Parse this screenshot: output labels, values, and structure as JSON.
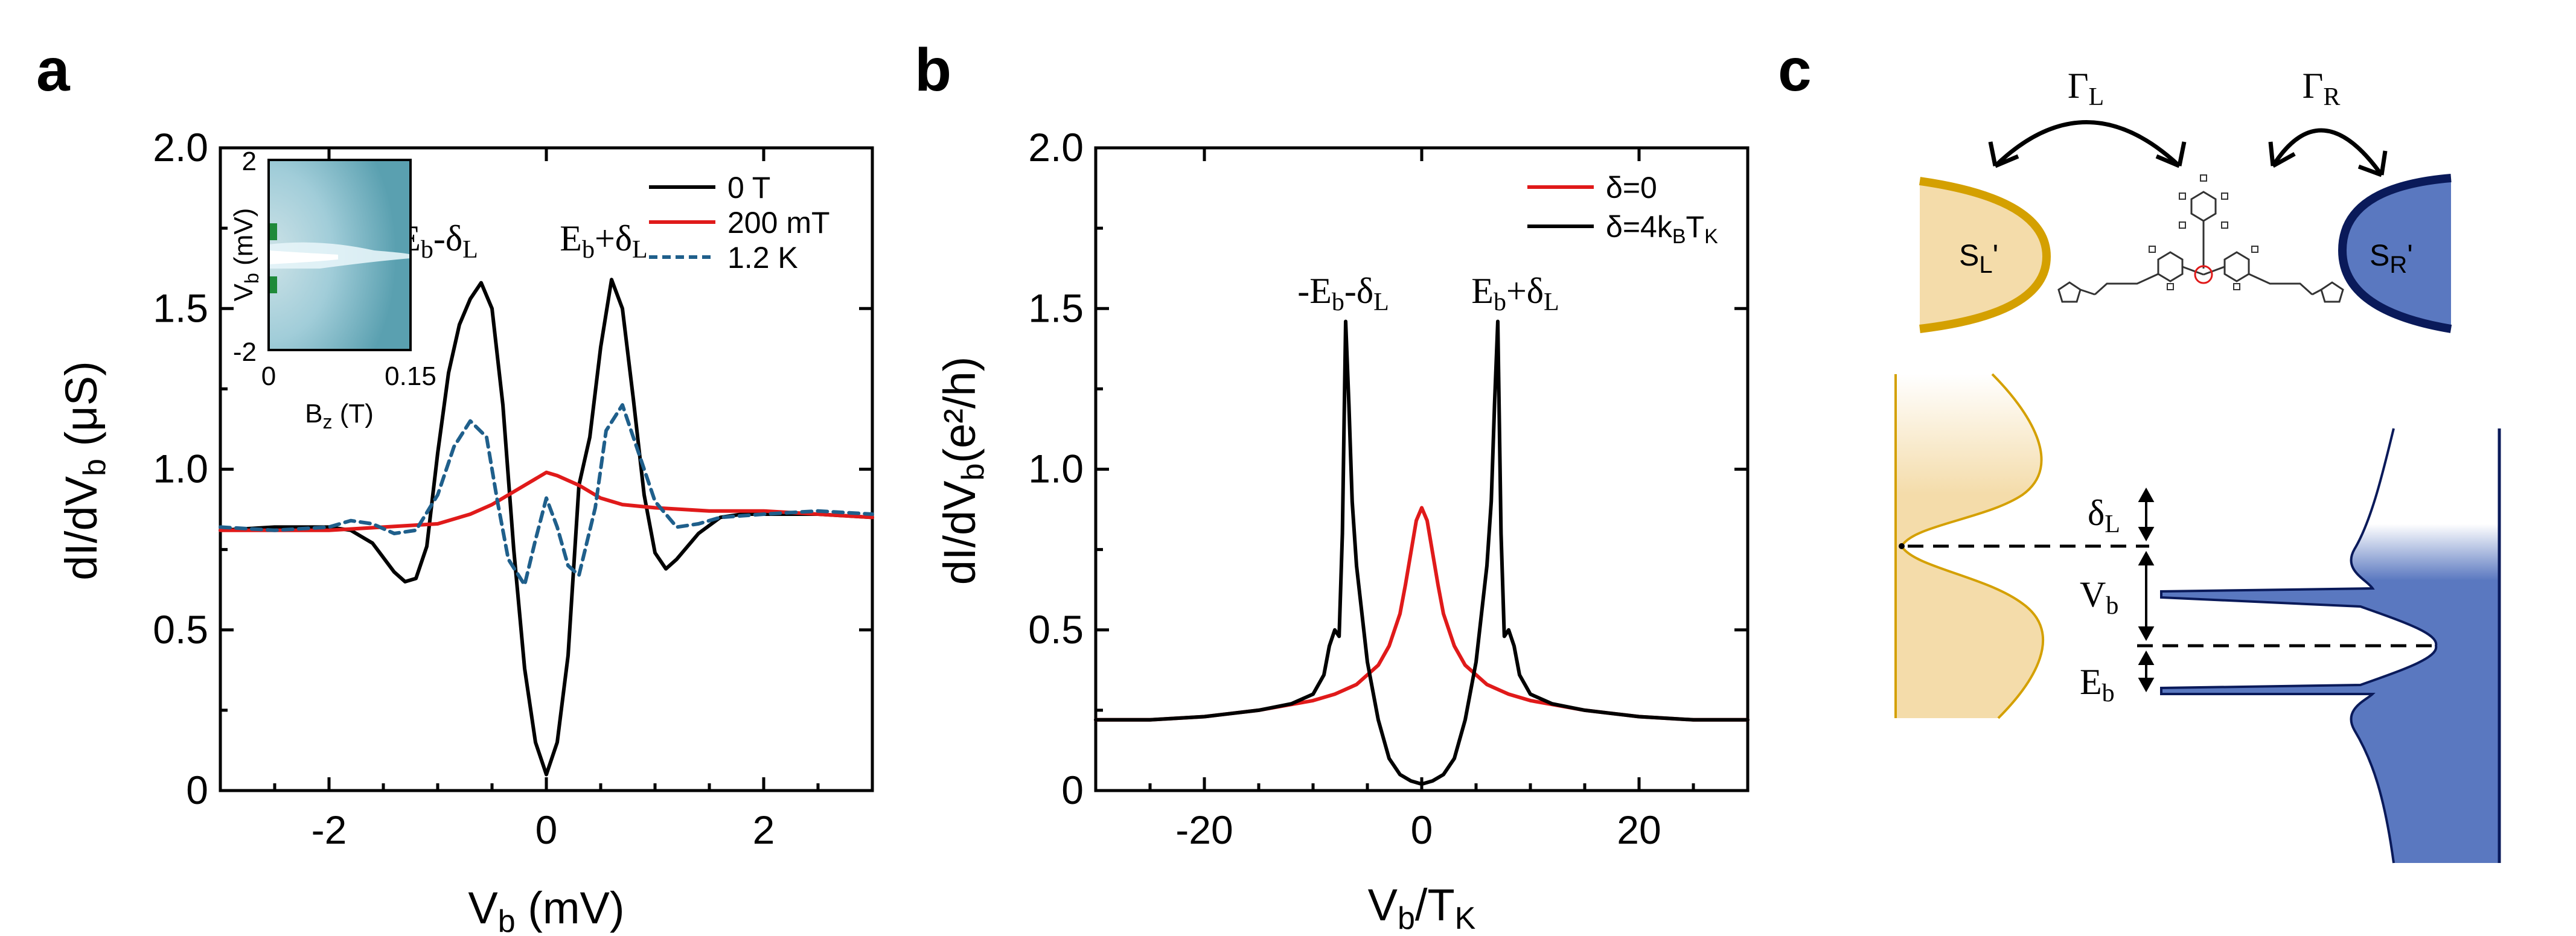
{
  "figure": {
    "panel_a": {
      "letter": "a"
    },
    "panel_b": {
      "letter": "b"
    },
    "panel_c": {
      "letter": "c"
    }
  },
  "chart_data": [
    {
      "type": "line",
      "panel": "a",
      "xlabel_main": "V",
      "xlabel_sub": "b",
      "xlabel_unit": " (mV)",
      "ylabel_main": "dI/dV",
      "ylabel_sub": "b",
      "ylabel_unit": " (μS)",
      "xlim": [
        -3,
        3
      ],
      "ylim": [
        0,
        2
      ],
      "xticks": [
        -2,
        0,
        2
      ],
      "xtick_labels": [
        "-2",
        "0",
        "2"
      ],
      "yticks": [
        0,
        0.5,
        1.0,
        1.5,
        2.0
      ],
      "ytick_labels": [
        "0",
        "0.5",
        "1.0",
        "1.5",
        "2.0"
      ],
      "legend_position": "top-right",
      "annotations": [
        {
          "main": "-E",
          "sub1": "b",
          "mid": "-δ",
          "sub2": "L"
        },
        {
          "main": "E",
          "sub1": "b",
          "mid": "+δ",
          "sub2": "L"
        }
      ],
      "series": [
        {
          "name": "0 T",
          "color": "#000000",
          "style": "solid",
          "x": [
            -3.0,
            -2.5,
            -2.0,
            -1.8,
            -1.6,
            -1.4,
            -1.3,
            -1.2,
            -1.1,
            -1.0,
            -0.9,
            -0.8,
            -0.7,
            -0.6,
            -0.5,
            -0.4,
            -0.3,
            -0.2,
            -0.1,
            0.0,
            0.1,
            0.2,
            0.3,
            0.4,
            0.5,
            0.6,
            0.7,
            0.8,
            0.9,
            1.0,
            1.1,
            1.2,
            1.4,
            1.6,
            1.8,
            2.0,
            2.5,
            3.0
          ],
          "y": [
            0.81,
            0.82,
            0.82,
            0.81,
            0.77,
            0.68,
            0.65,
            0.66,
            0.76,
            1.05,
            1.3,
            1.45,
            1.53,
            1.58,
            1.5,
            1.2,
            0.75,
            0.38,
            0.15,
            0.05,
            0.15,
            0.42,
            0.95,
            1.1,
            1.38,
            1.59,
            1.5,
            1.22,
            0.92,
            0.74,
            0.69,
            0.72,
            0.8,
            0.85,
            0.86,
            0.86,
            0.86,
            0.85
          ]
        },
        {
          "name": "200 mT",
          "color": "#e01a1a",
          "style": "solid",
          "x": [
            -3.0,
            -2.5,
            -2.0,
            -1.5,
            -1.0,
            -0.7,
            -0.5,
            -0.3,
            -0.1,
            0.0,
            0.1,
            0.3,
            0.5,
            0.7,
            1.0,
            1.5,
            2.0,
            2.5,
            3.0
          ],
          "y": [
            0.81,
            0.81,
            0.81,
            0.82,
            0.83,
            0.86,
            0.89,
            0.93,
            0.97,
            0.99,
            0.98,
            0.95,
            0.91,
            0.89,
            0.88,
            0.87,
            0.87,
            0.86,
            0.85
          ]
        },
        {
          "name": "1.2 K",
          "color": "#1f5f8b",
          "style": "dashed",
          "x": [
            -3.0,
            -2.5,
            -2.0,
            -1.8,
            -1.6,
            -1.4,
            -1.2,
            -1.0,
            -0.85,
            -0.7,
            -0.55,
            -0.45,
            -0.35,
            -0.2,
            -0.1,
            0.0,
            0.1,
            0.2,
            0.3,
            0.45,
            0.55,
            0.7,
            0.85,
            1.0,
            1.2,
            1.4,
            1.6,
            2.0,
            2.5,
            3.0
          ],
          "y": [
            0.82,
            0.81,
            0.82,
            0.84,
            0.83,
            0.8,
            0.81,
            0.92,
            1.07,
            1.15,
            1.1,
            0.9,
            0.72,
            0.64,
            0.78,
            0.91,
            0.82,
            0.7,
            0.67,
            0.88,
            1.12,
            1.2,
            1.05,
            0.9,
            0.82,
            0.83,
            0.85,
            0.86,
            0.87,
            0.86
          ]
        }
      ],
      "inset": {
        "xlabel_main": "B",
        "xlabel_sub": "z",
        "xlabel_unit": " (T)",
        "ylabel_main": "V",
        "ylabel_sub": "b",
        "ylabel_unit": " (mV)",
        "xlim": [
          0,
          0.15
        ],
        "ylim": [
          -2,
          2
        ],
        "xtick_labels": [
          "0",
          "0.15"
        ],
        "ytick_labels": [
          "2",
          "-2"
        ],
        "background_color": "#5aa0b0",
        "highlight_color": "#ffffff",
        "peak_color": "#1f8a3a"
      }
    },
    {
      "type": "line",
      "panel": "b",
      "xlabel_main": "V",
      "xlabel_sub": "b",
      "xlabel_mid": "/T",
      "xlabel_sub2": "K",
      "ylabel_main": "dI/dV",
      "ylabel_sub": "b",
      "ylabel_unit": "(e²/h)",
      "xlim": [
        -30,
        30
      ],
      "ylim": [
        0,
        2
      ],
      "xticks": [
        -20,
        0,
        20
      ],
      "xtick_labels": [
        "-20",
        "0",
        "20"
      ],
      "yticks": [
        0,
        0.5,
        1.0,
        1.5,
        2.0
      ],
      "ytick_labels": [
        "0",
        "0.5",
        "1.0",
        "1.5",
        "2.0"
      ],
      "legend_position": "top-right",
      "annotations": [
        {
          "main": "-E",
          "sub1": "b",
          "mid": "-δ",
          "sub2": "L"
        },
        {
          "main": "E",
          "sub1": "b",
          "mid": "+δ",
          "sub2": "L"
        }
      ],
      "series": [
        {
          "name": "δ=0",
          "color": "#e01a1a",
          "style": "solid",
          "x": [
            -30,
            -25,
            -20,
            -15,
            -10,
            -8,
            -6,
            -4,
            -3,
            -2,
            -1.5,
            -1,
            -0.5,
            0,
            0.5,
            1,
            1.5,
            2,
            3,
            4,
            6,
            8,
            10,
            15,
            20,
            25,
            30
          ],
          "y": [
            0.22,
            0.22,
            0.23,
            0.25,
            0.28,
            0.3,
            0.33,
            0.39,
            0.45,
            0.55,
            0.64,
            0.74,
            0.84,
            0.88,
            0.84,
            0.74,
            0.64,
            0.55,
            0.45,
            0.39,
            0.33,
            0.3,
            0.28,
            0.25,
            0.23,
            0.22,
            0.22
          ]
        },
        {
          "name": "δ=4k_BT_K",
          "legend_main": "δ=4k",
          "legend_sub1": "B",
          "legend_mid": "T",
          "legend_sub2": "K",
          "color": "#000000",
          "style": "solid",
          "x": [
            -30,
            -25,
            -20,
            -15,
            -12,
            -10,
            -9,
            -8.5,
            -8,
            -7.6,
            -7.3,
            -7.0,
            -6.7,
            -6.4,
            -6,
            -5,
            -4,
            -3,
            -2,
            -1,
            0,
            1,
            2,
            3,
            4,
            5,
            6,
            6.4,
            6.7,
            7.0,
            7.3,
            7.6,
            8,
            8.5,
            9,
            10,
            12,
            15,
            20,
            25,
            30
          ],
          "y": [
            0.22,
            0.22,
            0.23,
            0.25,
            0.27,
            0.3,
            0.36,
            0.45,
            0.5,
            0.48,
            0.8,
            1.46,
            1.2,
            0.9,
            0.7,
            0.4,
            0.22,
            0.1,
            0.05,
            0.03,
            0.02,
            0.03,
            0.05,
            0.1,
            0.22,
            0.4,
            0.7,
            0.9,
            1.2,
            1.46,
            0.8,
            0.48,
            0.5,
            0.45,
            0.36,
            0.3,
            0.27,
            0.25,
            0.23,
            0.22,
            0.22
          ]
        }
      ]
    }
  ],
  "schematic": {
    "gamma_left": {
      "main": "Γ",
      "sub": "L"
    },
    "gamma_right": {
      "main": "Γ",
      "sub": "R"
    },
    "lead_left": {
      "main": "S",
      "sub": "L",
      "prime": "'"
    },
    "lead_right": {
      "main": "S",
      "sub": "R",
      "prime": "'"
    },
    "delta_label": {
      "main": "δ",
      "sub": "L"
    },
    "vb_label": {
      "main": "V",
      "sub": "b"
    },
    "eb_label": {
      "main": "E",
      "sub": "b"
    },
    "left_fill_color": "#f4dcaa",
    "left_edge_color": "#d4a000",
    "right_fill_color": "#5a78c0",
    "right_edge_color": "#0a1a5a"
  }
}
